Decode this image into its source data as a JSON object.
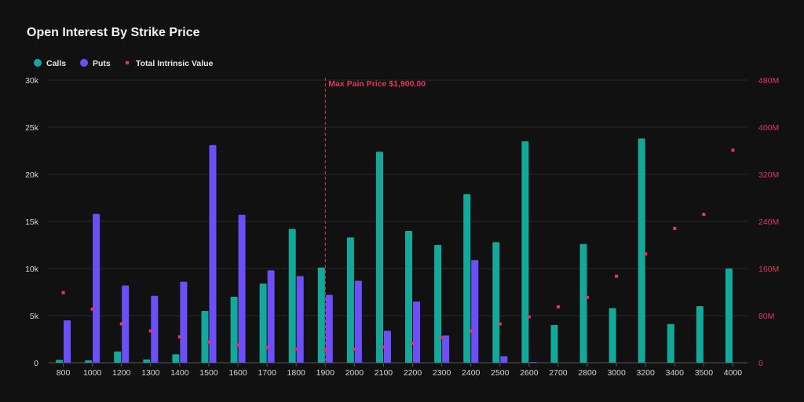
{
  "chart_data": {
    "type": "bar",
    "title": "Open Interest By Strike Price",
    "categories": [
      "800",
      "1000",
      "1200",
      "1300",
      "1400",
      "1500",
      "1600",
      "1700",
      "1800",
      "1900",
      "2000",
      "2100",
      "2200",
      "2300",
      "2400",
      "2500",
      "2600",
      "2700",
      "2800",
      "3000",
      "3200",
      "3400",
      "3500",
      "4000"
    ],
    "series": [
      {
        "name": "Calls",
        "kind": "bar",
        "axis": "left",
        "color": "#14a89b",
        "values": [
          300,
          250,
          1200,
          350,
          900,
          5500,
          7000,
          8400,
          14200,
          10100,
          13300,
          22400,
          14000,
          12500,
          17900,
          12800,
          23500,
          4000,
          12600,
          5800,
          23800,
          4100,
          6000,
          10000
        ]
      },
      {
        "name": "Puts",
        "kind": "bar",
        "axis": "left",
        "color": "#6c4ff7",
        "values": [
          4500,
          15800,
          8200,
          7100,
          8600,
          23100,
          15700,
          9800,
          9200,
          7200,
          8700,
          3400,
          6500,
          2900,
          10900,
          700,
          80,
          0,
          0,
          0,
          0,
          0,
          0,
          0
        ]
      },
      {
        "name": "Total Intrinsic Value",
        "kind": "point",
        "axis": "right",
        "color": "#e0365f",
        "values": [
          119000000,
          91000000,
          66000000,
          54000000,
          44000000,
          35000000,
          30000000,
          26000000,
          23000000,
          21000000,
          23000000,
          27000000,
          33000000,
          43000000,
          54000000,
          66000000,
          78000000,
          95000000,
          111000000,
          147000000,
          185000000,
          228000000,
          252000000,
          361000000
        ]
      }
    ],
    "y_left": {
      "min": 0,
      "max": 30000,
      "ticks": [
        0,
        5000,
        10000,
        15000,
        20000,
        25000,
        30000
      ],
      "tick_labels": [
        "0",
        "5k",
        "10k",
        "15k",
        "20k",
        "25k",
        "30k"
      ]
    },
    "y_right": {
      "min": 0,
      "max": 480000000,
      "ticks": [
        0,
        80000000,
        160000000,
        240000000,
        320000000,
        400000000,
        480000000
      ],
      "tick_labels": [
        "0",
        "80M",
        "160M",
        "240M",
        "320M",
        "400M",
        "480M"
      ]
    },
    "annotation": {
      "label": "Max Pain Price $1,900.00",
      "category": "1900",
      "color": "#e0365f"
    },
    "legend": {
      "placement": "top-left"
    },
    "grid": true
  }
}
